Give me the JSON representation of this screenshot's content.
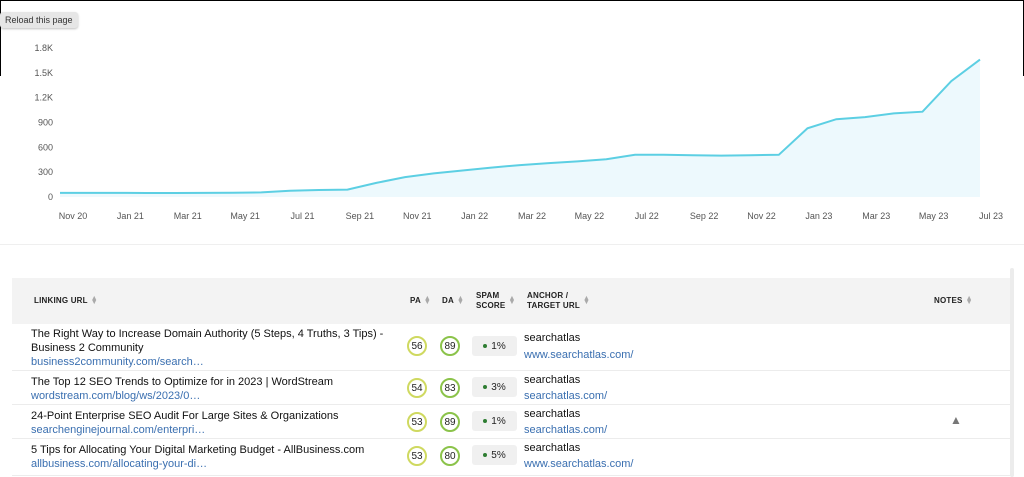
{
  "tooltip": "Reload this page",
  "chart_data": {
    "type": "area",
    "y_ticks": [
      "1.8K",
      "1.5K",
      "1.2K",
      "900",
      "600",
      "300",
      "0"
    ],
    "x_ticks": [
      "Nov 20",
      "Jan 21",
      "Mar 21",
      "May 21",
      "Jul 21",
      "Sep 21",
      "Nov 21",
      "Jan 22",
      "Mar 22",
      "May 22",
      "Jul 22",
      "Sep 22",
      "Nov 22",
      "Jan 23",
      "Mar 23",
      "May 23",
      "Jul 23"
    ],
    "ylim": [
      0,
      1800
    ],
    "x": [
      "Nov 20",
      "Dec 20",
      "Jan 21",
      "Feb 21",
      "Mar 21",
      "Apr 21",
      "May 21",
      "Jun 21",
      "Jul 21",
      "Aug 21",
      "Sep 21",
      "Oct 21",
      "Nov 21",
      "Dec 21",
      "Jan 22",
      "Feb 22",
      "Mar 22",
      "Apr 22",
      "May 22",
      "Jun 22",
      "Jul 22",
      "Aug 22",
      "Sep 22",
      "Oct 22",
      "Nov 22",
      "Dec 22",
      "Jan 23",
      "Feb 23",
      "Mar 23",
      "Apr 23",
      "May 23",
      "Jun 23",
      "Jul 23"
    ],
    "values": [
      50,
      50,
      50,
      48,
      48,
      50,
      52,
      55,
      75,
      85,
      90,
      170,
      240,
      285,
      320,
      355,
      385,
      410,
      430,
      455,
      510,
      510,
      505,
      500,
      505,
      510,
      830,
      940,
      965,
      1010,
      1030,
      1400,
      1660
    ],
    "line_color": "#5ccfe3",
    "fill_color": "#e9f7fc",
    "grid": false
  },
  "table": {
    "headers": {
      "linking_url": "LINKING URL",
      "pa": "PA",
      "da": "DA",
      "spam1": "SPAM",
      "spam2": "SCORE",
      "anchor1": "ANCHOR /",
      "anchor2": "TARGET URL",
      "notes": "NOTES"
    },
    "rows": [
      {
        "title": "The Right Way to Increase Domain Authority (5 Steps, 4 Truths, 3 Tips) - Business 2 Community",
        "url": "business2community.com/search…",
        "pa": "56",
        "da": "89",
        "spam": "1%",
        "anchor": "searchatlas",
        "target": "www.searchatlas.com/",
        "note": ""
      },
      {
        "title": "The Top 12 SEO Trends to Optimize for in 2023 | WordStream",
        "url": "wordstream.com/blog/ws/2023/0…",
        "pa": "54",
        "da": "83",
        "spam": "3%",
        "anchor": "searchatlas",
        "target": "searchatlas.com/",
        "note": ""
      },
      {
        "title": "24-Point Enterprise SEO Audit For Large Sites & Organizations",
        "url": "searchenginejournal.com/enterpri…",
        "pa": "53",
        "da": "89",
        "spam": "1%",
        "anchor": "searchatlas",
        "target": "searchatlas.com/",
        "note": "warning"
      },
      {
        "title": "5 Tips for Allocating Your Digital Marketing Budget - AllBusiness.com",
        "url": "allbusiness.com/allocating-your-di…",
        "pa": "53",
        "da": "80",
        "spam": "5%",
        "anchor": "searchatlas",
        "target": "www.searchatlas.com/",
        "note": ""
      }
    ]
  }
}
